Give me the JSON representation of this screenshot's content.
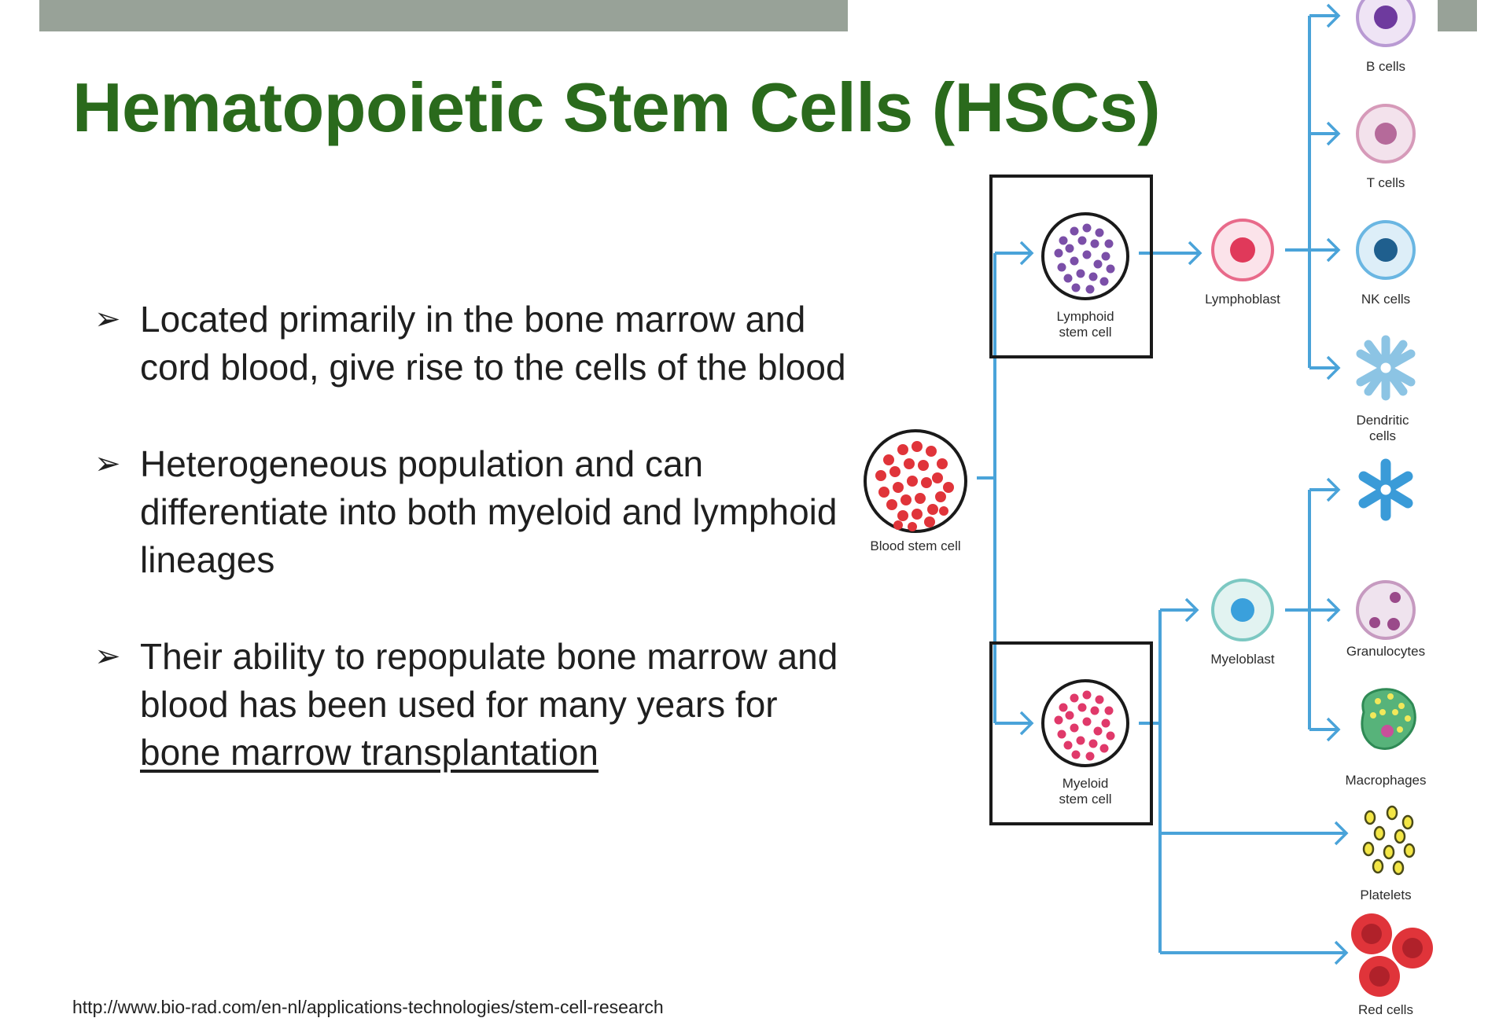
{
  "slide": {
    "title": "Hematopoietic Stem Cells (HSCs)",
    "bullets": [
      {
        "text": "Located primarily in the bone marrow and cord blood, give rise to the cells of the blood",
        "link": ""
      },
      {
        "text": "Heterogeneous population and can differentiate into both myeloid and lymphoid lineages",
        "link": ""
      },
      {
        "text": "Their ability to repopulate bone marrow and blood has been used for many years for ",
        "link": "bone marrow transplantation"
      }
    ],
    "bullet_marker": "➢",
    "source_url": "http://www.bio-rad.com/en-nl/applications-technologies/stem-cell-research"
  },
  "diagram": {
    "colors": {
      "arrow": "#4aa3d9",
      "box": "#1a1a1a",
      "red": "#e0343a",
      "purple": "#7b4fa8",
      "pink": "#e0396a",
      "lightblue": "#5aaee0"
    },
    "labels": {
      "blood_stem_cell": "Blood stem cell",
      "lymphoid_stem_cell": [
        "Lymphoid",
        "stem cell"
      ],
      "myeloid_stem_cell": [
        "Myeloid",
        "stem cell"
      ],
      "lymphoblast": "Lymphoblast",
      "myeloblast": "Myeloblast",
      "b_cells": "B cells",
      "t_cells": "T cells",
      "nk_cells": "NK cells",
      "dendritic_cells": [
        "Dendritic",
        "cells"
      ],
      "granulocytes": "Granulocytes",
      "macrophages": "Macrophages",
      "platelets": "Platelets",
      "red_cells": "Red cells"
    }
  }
}
